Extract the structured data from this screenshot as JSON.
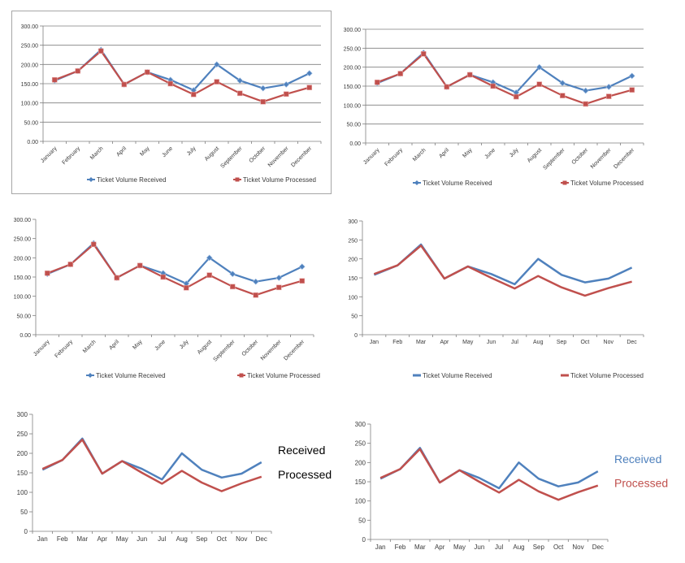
{
  "charts": [
    {
      "type": "line",
      "categories": [
        "January",
        "February",
        "March",
        "April",
        "May",
        "June",
        "July",
        "August",
        "September",
        "October",
        "November",
        "December"
      ],
      "yticks": [
        "0.00",
        "50.00",
        "100.00",
        "150.00",
        "200.00",
        "250.00",
        "300.00"
      ],
      "ylim": [
        0,
        300
      ],
      "xlabel": "",
      "ylabel": "",
      "grid": true,
      "legend": [
        "Ticket Volume Received",
        "Ticket Volume Processed"
      ],
      "legend_position": "bottom",
      "series": [
        {
          "name": "Ticket Volume Received",
          "color": "#4f81bd",
          "values": [
            158,
            183,
            238,
            148,
            180,
            160,
            133,
            200,
            158,
            138,
            148,
            177
          ]
        },
        {
          "name": "Ticket Volume Processed",
          "color": "#c0504d",
          "values": [
            160,
            183,
            235,
            148,
            180,
            150,
            122,
            155,
            125,
            103,
            123,
            140
          ]
        }
      ]
    },
    {
      "type": "line",
      "categories": [
        "January",
        "February",
        "March",
        "April",
        "May",
        "June",
        "July",
        "August",
        "September",
        "October",
        "November",
        "December"
      ],
      "yticks": [
        "0.00",
        "50.00",
        "100.00",
        "150.00",
        "200.00",
        "250.00",
        "300.00"
      ],
      "ylim": [
        0,
        300
      ],
      "xlabel": "",
      "ylabel": "",
      "grid": true,
      "legend": [
        "Ticket Volume Received",
        "Ticket Volume Processed"
      ],
      "legend_position": "bottom",
      "series": [
        {
          "name": "Ticket Volume Received",
          "color": "#4f81bd",
          "values": [
            158,
            183,
            238,
            148,
            180,
            160,
            133,
            200,
            158,
            138,
            148,
            177
          ]
        },
        {
          "name": "Ticket Volume Processed",
          "color": "#c0504d",
          "values": [
            160,
            183,
            235,
            148,
            180,
            150,
            122,
            155,
            125,
            103,
            123,
            140
          ]
        }
      ]
    },
    {
      "type": "line",
      "categories": [
        "January",
        "February",
        "March",
        "April",
        "May",
        "June",
        "July",
        "August",
        "September",
        "October",
        "November",
        "December"
      ],
      "yticks": [
        "0.00",
        "50.00",
        "100.00",
        "150.00",
        "200.00",
        "250.00",
        "300.00"
      ],
      "ylim": [
        0,
        300
      ],
      "xlabel": "",
      "ylabel": "",
      "grid": false,
      "legend": [
        "Ticket Volume Received",
        "Ticket Volume Processed"
      ],
      "legend_position": "bottom",
      "series": [
        {
          "name": "Ticket Volume Received",
          "color": "#4f81bd",
          "values": [
            158,
            183,
            238,
            148,
            180,
            160,
            133,
            200,
            158,
            138,
            148,
            177
          ]
        },
        {
          "name": "Ticket Volume Processed",
          "color": "#c0504d",
          "values": [
            160,
            183,
            235,
            148,
            180,
            150,
            122,
            155,
            125,
            103,
            123,
            140
          ]
        }
      ]
    },
    {
      "type": "line",
      "categories": [
        "Jan",
        "Feb",
        "Mar",
        "Apr",
        "May",
        "Jun",
        "Jul",
        "Aug",
        "Sep",
        "Oct",
        "Nov",
        "Dec"
      ],
      "yticks": [
        "0",
        "50",
        "100",
        "150",
        "200",
        "250",
        "300"
      ],
      "ylim": [
        0,
        300
      ],
      "xlabel": "",
      "ylabel": "",
      "grid": false,
      "legend": [
        "Ticket Volume Received",
        "Ticket Volume Processed"
      ],
      "legend_position": "bottom",
      "series": [
        {
          "name": "Ticket Volume Received",
          "color": "#4f81bd",
          "values": [
            158,
            183,
            238,
            148,
            180,
            160,
            133,
            200,
            158,
            138,
            148,
            177
          ]
        },
        {
          "name": "Ticket Volume Processed",
          "color": "#c0504d",
          "values": [
            160,
            183,
            235,
            148,
            180,
            150,
            122,
            155,
            125,
            103,
            123,
            140
          ]
        }
      ]
    },
    {
      "type": "line",
      "categories": [
        "Jan",
        "Feb",
        "Mar",
        "Apr",
        "May",
        "Jun",
        "Jul",
        "Aug",
        "Sep",
        "Oct",
        "Nov",
        "Dec"
      ],
      "yticks": [
        "0",
        "50",
        "100",
        "150",
        "200",
        "250",
        "300"
      ],
      "ylim": [
        0,
        300
      ],
      "xlabel": "",
      "ylabel": "",
      "grid": false,
      "direct_labels": [
        "Received",
        "Processed"
      ],
      "direct_label_color": "#000000",
      "series": [
        {
          "name": "Received",
          "color": "#4f81bd",
          "values": [
            158,
            183,
            238,
            148,
            180,
            160,
            133,
            200,
            158,
            138,
            148,
            177
          ]
        },
        {
          "name": "Processed",
          "color": "#c0504d",
          "values": [
            160,
            183,
            235,
            148,
            180,
            150,
            122,
            155,
            125,
            103,
            123,
            140
          ]
        }
      ]
    },
    {
      "type": "line",
      "categories": [
        "Jan",
        "Feb",
        "Mar",
        "Apr",
        "May",
        "Jun",
        "Jul",
        "Aug",
        "Sep",
        "Oct",
        "Nov",
        "Dec"
      ],
      "yticks": [
        "0",
        "50",
        "100",
        "150",
        "200",
        "250",
        "300"
      ],
      "ylim": [
        0,
        300
      ],
      "xlabel": "",
      "ylabel": "",
      "grid": false,
      "direct_labels": [
        "Received",
        "Processed"
      ],
      "direct_label_color": "series",
      "series": [
        {
          "name": "Received",
          "color": "#4f81bd",
          "values": [
            158,
            183,
            238,
            148,
            180,
            160,
            133,
            200,
            158,
            138,
            148,
            177
          ]
        },
        {
          "name": "Processed",
          "color": "#c0504d",
          "values": [
            160,
            183,
            235,
            148,
            180,
            150,
            122,
            155,
            125,
            103,
            123,
            140
          ]
        }
      ]
    }
  ]
}
